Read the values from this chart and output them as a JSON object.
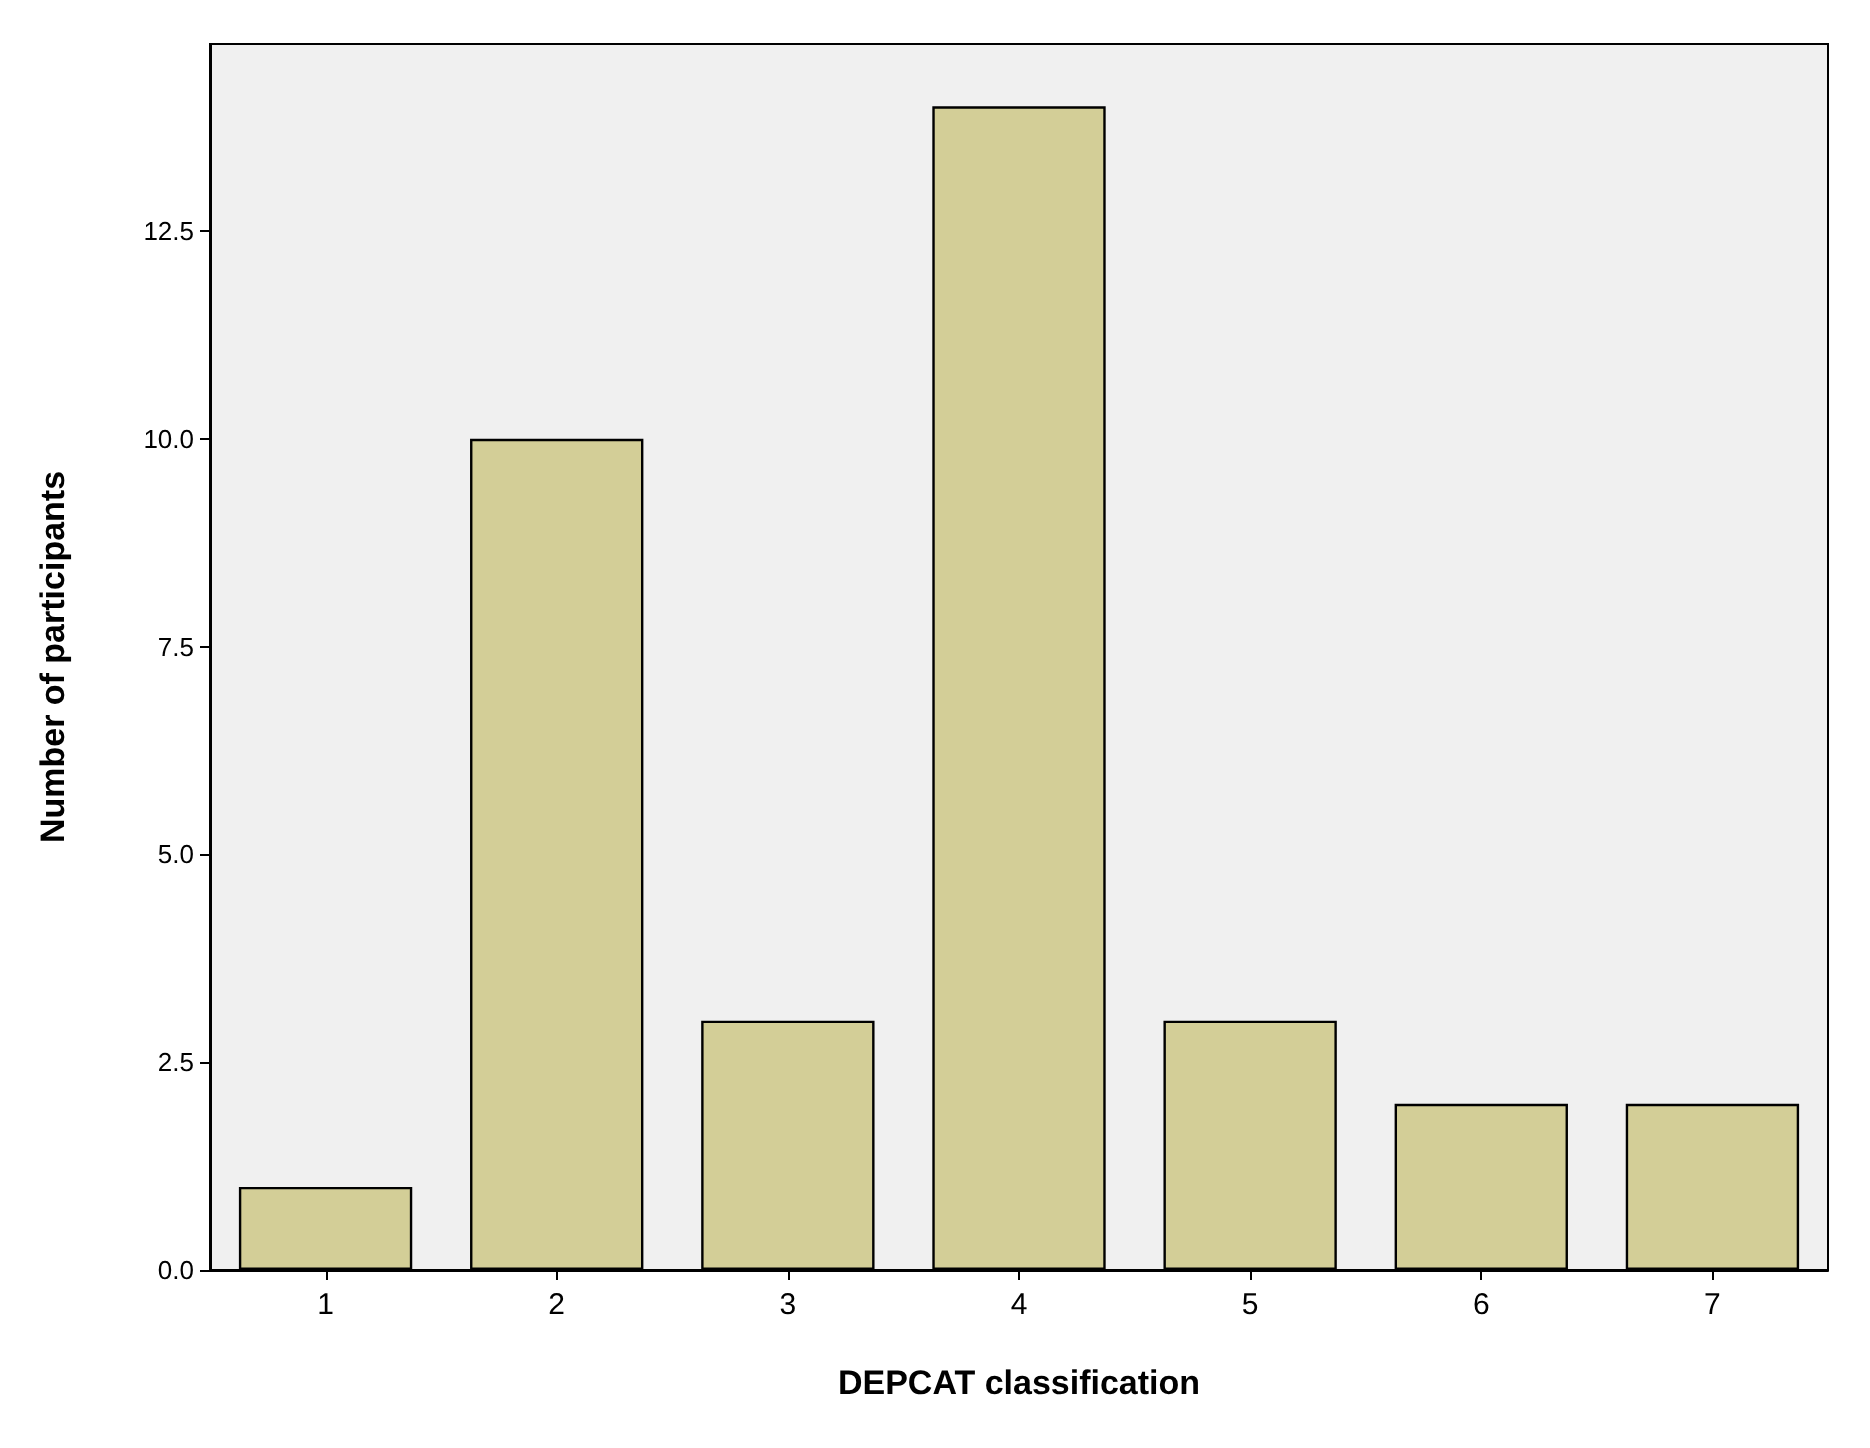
{
  "chart_data": {
    "type": "bar",
    "xlabel": "DEPCAT classification",
    "ylabel": "Number of participants",
    "categories": [
      "1",
      "2",
      "3",
      "4",
      "5",
      "6",
      "7"
    ],
    "values": [
      1,
      10,
      3,
      14,
      3,
      2,
      2
    ],
    "color": "#d3ce97",
    "ylim": [
      0,
      14.75
    ],
    "yticks": [
      {
        "value": 0,
        "label": "0.0"
      },
      {
        "value": 2.5,
        "label": "2.5"
      },
      {
        "value": 5,
        "label": "5.0"
      },
      {
        "value": 7.5,
        "label": "7.5"
      },
      {
        "value": 10,
        "label": "10.0"
      },
      {
        "value": 12.5,
        "label": "12.5"
      }
    ],
    "grid": false
  }
}
